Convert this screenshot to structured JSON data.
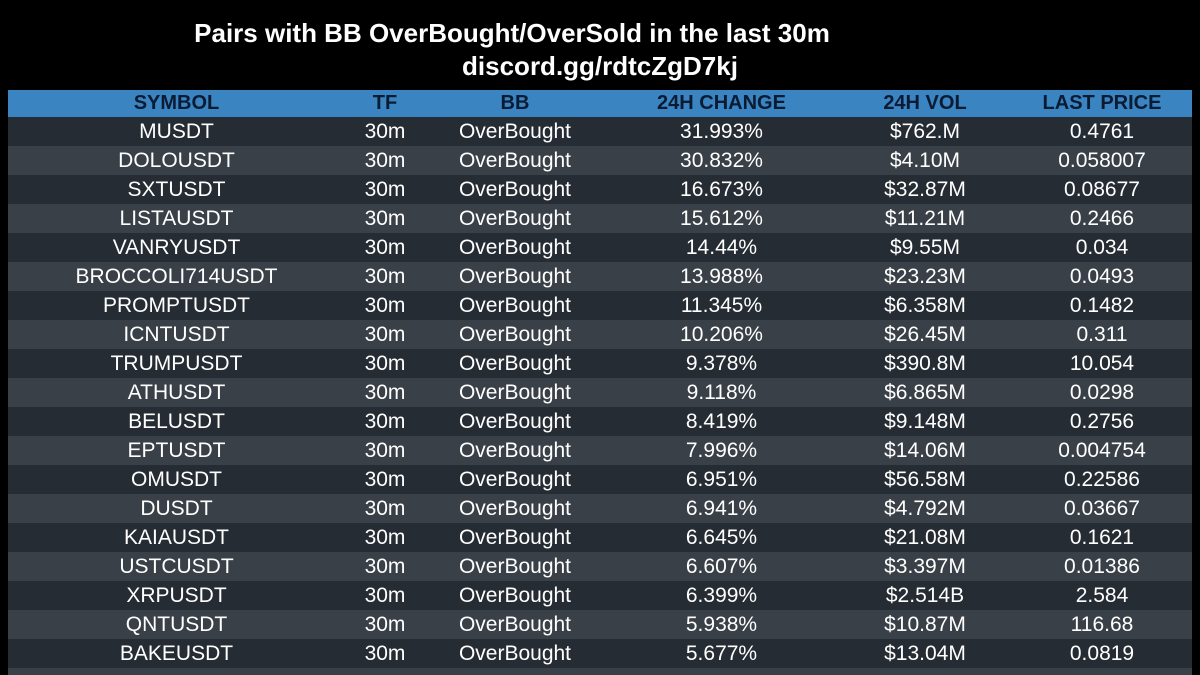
{
  "header": {
    "title": "Pairs with BB OverBought/OverSold in the last 30m",
    "subtitle": "discord.gg/rdtcZgD7kj"
  },
  "table": {
    "columns": [
      "SYMBOL",
      "TF",
      "BB",
      "24H CHANGE",
      "24H VOL",
      "LAST PRICE"
    ],
    "rows": [
      [
        "MUSDT",
        "30m",
        "OverBought",
        "31.993%",
        "$762.M",
        "0.4761"
      ],
      [
        "DOLOUSDT",
        "30m",
        "OverBought",
        "30.832%",
        "$4.10M",
        "0.058007"
      ],
      [
        "SXTUSDT",
        "30m",
        "OverBought",
        "16.673%",
        "$32.87M",
        "0.08677"
      ],
      [
        "LISTAUSDT",
        "30m",
        "OverBought",
        "15.612%",
        "$11.21M",
        "0.2466"
      ],
      [
        "VANRYUSDT",
        "30m",
        "OverBought",
        "14.44%",
        "$9.55M",
        "0.034"
      ],
      [
        "BROCCOLI714USDT",
        "30m",
        "OverBought",
        "13.988%",
        "$23.23M",
        "0.0493"
      ],
      [
        "PROMPTUSDT",
        "30m",
        "OverBought",
        "11.345%",
        "$6.358M",
        "0.1482"
      ],
      [
        "ICNTUSDT",
        "30m",
        "OverBought",
        "10.206%",
        "$26.45M",
        "0.311"
      ],
      [
        "TRUMPUSDT",
        "30m",
        "OverBought",
        "9.378%",
        "$390.8M",
        "10.054"
      ],
      [
        "ATHUSDT",
        "30m",
        "OverBought",
        "9.118%",
        "$6.865M",
        "0.0298"
      ],
      [
        "BELUSDT",
        "30m",
        "OverBought",
        "8.419%",
        "$9.148M",
        "0.2756"
      ],
      [
        "EPTUSDT",
        "30m",
        "OverBought",
        "7.996%",
        "$14.06M",
        "0.004754"
      ],
      [
        "OMUSDT",
        "30m",
        "OverBought",
        "6.951%",
        "$56.58M",
        "0.22586"
      ],
      [
        "DUSDT",
        "30m",
        "OverBought",
        "6.941%",
        "$4.792M",
        "0.03667"
      ],
      [
        "KAIAUSDT",
        "30m",
        "OverBought",
        "6.645%",
        "$21.08M",
        "0.1621"
      ],
      [
        "USTCUSDT",
        "30m",
        "OverBought",
        "6.607%",
        "$3.397M",
        "0.01386"
      ],
      [
        "XRPUSDT",
        "30m",
        "OverBought",
        "6.399%",
        "$2.514B",
        "2.584"
      ],
      [
        "QNTUSDT",
        "30m",
        "OverBought",
        "5.938%",
        "$10.87M",
        "116.68"
      ],
      [
        "BAKEUSDT",
        "30m",
        "OverBought",
        "5.677%",
        "$13.04M",
        "0.0819"
      ],
      [
        "",
        "",
        "",
        "",
        "",
        ""
      ]
    ]
  },
  "colors": {
    "background": "#000000",
    "header_bg": "#3a84c1",
    "header_text": "#0b1b33",
    "row_dark": "#262c33",
    "row_light": "#3a4047",
    "text": "#ffffff"
  }
}
